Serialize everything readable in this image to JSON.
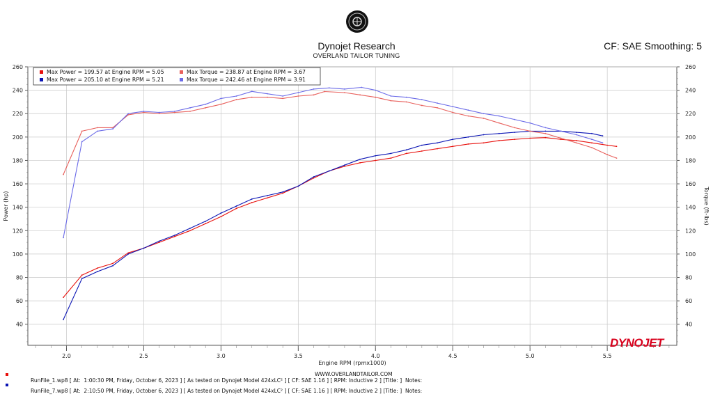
{
  "header": {
    "title": "Dynojet Research",
    "subtitle": "OVERLAND TAILOR TUNING",
    "cf_label": "CF: SAE Smoothing: 5"
  },
  "colors": {
    "power_run1": "#e8100c",
    "power_run2": "#0a14b4",
    "torque_run1": "#e8605c",
    "torque_run2": "#6a6ae8",
    "brand_red": "#d8001c"
  },
  "legend": [
    [
      "Max Power = 199.57 at Engine RPM = 5.05",
      "Max Torque = 238.87 at Engine RPM = 3.67"
    ],
    [
      "Max Power = 205.10 at Engine RPM = 5.21",
      "Max Torque = 242.46 at Engine RPM = 3.91"
    ]
  ],
  "chart_data": {
    "type": "line",
    "xlabel": "Engine RPM (rpmx1000)",
    "ylabel_left": "Power (hp)",
    "ylabel_right": "Torque (ft-lbs)",
    "xlim": [
      1.75,
      5.95
    ],
    "ylim": [
      22,
      260
    ],
    "x_ticks": [
      "2.0",
      "2.5",
      "3.0",
      "3.5",
      "4.0",
      "4.5",
      "5.0",
      "5.5"
    ],
    "y_ticks": [
      40,
      60,
      80,
      100,
      120,
      140,
      160,
      180,
      200,
      220,
      240,
      260
    ],
    "grid": true,
    "series": [
      {
        "name": "Max Power = 199.57 at Engine RPM = 5.05",
        "color": "#e8100c",
        "x": [
          1.98,
          2.1,
          2.2,
          2.3,
          2.4,
          2.5,
          2.6,
          2.7,
          2.8,
          2.9,
          3.0,
          3.1,
          3.2,
          3.3,
          3.4,
          3.5,
          3.6,
          3.7,
          3.8,
          3.9,
          4.0,
          4.1,
          4.2,
          4.3,
          4.4,
          4.5,
          4.6,
          4.7,
          4.8,
          4.9,
          5.0,
          5.1,
          5.2,
          5.3,
          5.4,
          5.5,
          5.56
        ],
        "values": [
          63,
          82,
          88,
          92,
          101,
          105,
          110,
          115,
          120,
          126,
          132,
          139,
          144,
          148,
          152,
          158,
          165,
          171,
          175,
          178,
          180,
          182,
          186,
          188,
          190,
          192,
          194,
          195,
          197,
          198,
          199,
          199.5,
          198,
          197,
          195,
          193,
          192
        ]
      },
      {
        "name": "Max Power = 205.10 at Engine RPM = 5.21",
        "color": "#0a14b4",
        "x": [
          1.98,
          2.1,
          2.2,
          2.3,
          2.4,
          2.5,
          2.6,
          2.7,
          2.8,
          2.9,
          3.0,
          3.1,
          3.2,
          3.3,
          3.4,
          3.5,
          3.6,
          3.7,
          3.8,
          3.9,
          4.0,
          4.1,
          4.2,
          4.3,
          4.4,
          4.5,
          4.6,
          4.7,
          4.8,
          4.9,
          5.0,
          5.1,
          5.2,
          5.3,
          5.4,
          5.47
        ],
        "values": [
          44,
          79,
          85,
          90,
          100,
          105,
          111,
          116,
          122,
          128,
          135,
          141,
          147,
          150,
          153,
          158,
          166,
          171,
          176,
          181,
          184,
          186,
          189,
          193,
          195,
          198,
          200,
          202,
          203,
          204,
          205,
          205,
          205,
          204,
          203,
          201
        ]
      },
      {
        "name": "Max Torque = 238.87 at Engine RPM = 3.67",
        "color": "#e8605c",
        "x": [
          1.98,
          2.1,
          2.2,
          2.3,
          2.4,
          2.5,
          2.6,
          2.7,
          2.8,
          2.9,
          3.0,
          3.1,
          3.2,
          3.3,
          3.4,
          3.5,
          3.6,
          3.67,
          3.8,
          3.9,
          4.0,
          4.1,
          4.2,
          4.3,
          4.4,
          4.5,
          4.6,
          4.7,
          4.8,
          4.9,
          5.0,
          5.1,
          5.2,
          5.3,
          5.4,
          5.5,
          5.56
        ],
        "values": [
          168,
          205,
          208,
          208,
          219,
          221,
          220,
          221,
          222,
          225,
          228,
          232,
          234,
          234,
          233,
          235,
          236,
          238.87,
          238,
          236,
          234,
          231,
          230,
          227,
          225,
          221,
          218,
          216,
          212,
          208,
          205,
          203,
          199,
          195,
          191,
          185,
          182
        ]
      },
      {
        "name": "Max Torque = 242.46 at Engine RPM = 3.91",
        "color": "#6a6ae8",
        "x": [
          1.98,
          2.1,
          2.2,
          2.3,
          2.4,
          2.5,
          2.6,
          2.7,
          2.8,
          2.9,
          3.0,
          3.1,
          3.2,
          3.3,
          3.4,
          3.5,
          3.6,
          3.7,
          3.8,
          3.91,
          4.0,
          4.1,
          4.2,
          4.3,
          4.4,
          4.5,
          4.6,
          4.7,
          4.8,
          4.9,
          5.0,
          5.1,
          5.2,
          5.3,
          5.4,
          5.47
        ],
        "values": [
          114,
          196,
          205,
          207,
          220,
          222,
          221,
          222,
          225,
          228,
          233,
          235,
          239,
          237,
          235,
          238,
          241,
          242,
          241,
          242.46,
          240,
          235,
          234,
          232,
          229,
          226,
          223,
          220,
          218,
          215,
          212,
          208,
          205,
          202,
          198,
          195
        ]
      }
    ]
  },
  "footer": {
    "url": "WWW.OVERLANDTAILOR.COM",
    "brand": "DYNOJET",
    "runs": [
      {
        "color": "#e8100c",
        "text": "RunFile_1.wp8 [ At:  1:00:30 PM, Friday, October 6, 2023 ] [ As tested on Dynojet Model 424xLC² ] [ CF: SAE 1.16 ] [ RPM: Inductive 2 ] [Title: ]  Notes:"
      },
      {
        "color": "#0a14b4",
        "text": "RunFile_7.wp8 [ At:  2:10:50 PM, Friday, October 6, 2023 ] [ As tested on Dynojet Model 424xLC² ] [ CF: SAE 1.16 ] [ RPM: Inductive 2 ] [Title: ]  Notes:"
      }
    ]
  }
}
